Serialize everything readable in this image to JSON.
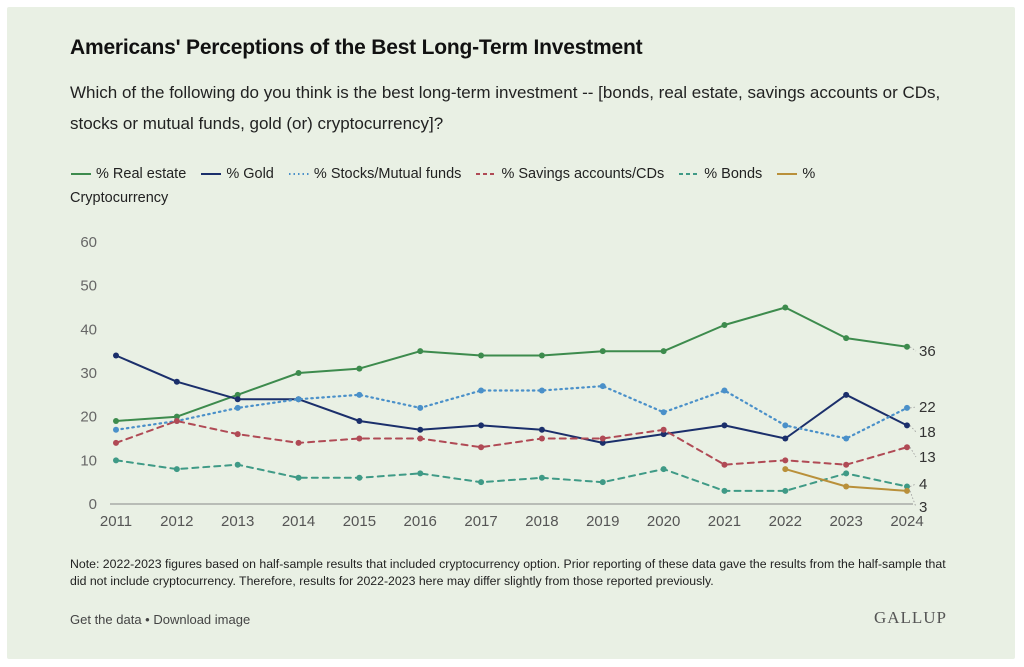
{
  "header": {
    "title": "Americans' Perceptions of the Best Long-Term Investment",
    "subtitle": "Which of the following do you think is the best long-term investment -- [bonds, real estate, savings accounts or CDs, stocks or mutual funds, gold (or) cryptocurrency]?"
  },
  "footer": {
    "note": "Note: 2022-2023 figures based on half-sample results that included cryptocurrency option. Prior reporting of these data gave the results from the half-sample that did not include cryptocurrency. Therefore, results for 2022-2023 here may differ slightly from those reported previously.",
    "get_data": "Get the data",
    "separator": " • ",
    "download": "Download image",
    "logo": "GALLUP"
  },
  "chart_data": {
    "type": "line",
    "title": "Americans' Perceptions of the Best Long-Term Investment",
    "xlabel": "",
    "ylabel": "",
    "x": [
      2011,
      2012,
      2013,
      2014,
      2015,
      2016,
      2017,
      2018,
      2019,
      2020,
      2021,
      2022,
      2023,
      2024
    ],
    "y_ticks": [
      0,
      10,
      20,
      30,
      40,
      50,
      60
    ],
    "ylim": [
      0,
      60
    ],
    "grid": false,
    "legend_position": "top",
    "series": [
      {
        "name": "% Real estate",
        "color": "#3d8b4d",
        "style": "solid",
        "values": [
          19,
          20,
          25,
          30,
          31,
          35,
          34,
          34,
          35,
          35,
          41,
          45,
          38,
          36
        ],
        "end_label": "36"
      },
      {
        "name": "% Gold",
        "color": "#1b2f6b",
        "style": "solid",
        "values": [
          34,
          28,
          24,
          24,
          19,
          17,
          18,
          17,
          14,
          16,
          18,
          15,
          25,
          18
        ],
        "end_label": "18"
      },
      {
        "name": "% Stocks/Mutual funds",
        "color": "#4a90c9",
        "style": "dotted",
        "values": [
          17,
          19,
          22,
          24,
          25,
          22,
          26,
          26,
          27,
          21,
          26,
          18,
          15,
          22
        ],
        "end_label": "22"
      },
      {
        "name": "% Savings accounts/CDs",
        "color": "#b04a55",
        "style": "dashed",
        "values": [
          14,
          19,
          16,
          14,
          15,
          15,
          13,
          15,
          15,
          17,
          9,
          10,
          9,
          13
        ],
        "end_label": "13"
      },
      {
        "name": "% Bonds",
        "color": "#3f9a86",
        "style": "dashed",
        "values": [
          10,
          8,
          9,
          6,
          6,
          7,
          5,
          6,
          5,
          8,
          3,
          3,
          7,
          4
        ],
        "end_label": "4"
      },
      {
        "name": "% Cryptocurrency",
        "color": "#b9903a",
        "style": "solid",
        "values": [
          null,
          null,
          null,
          null,
          null,
          null,
          null,
          null,
          null,
          null,
          null,
          8,
          4,
          3
        ],
        "end_label": "3"
      }
    ]
  }
}
